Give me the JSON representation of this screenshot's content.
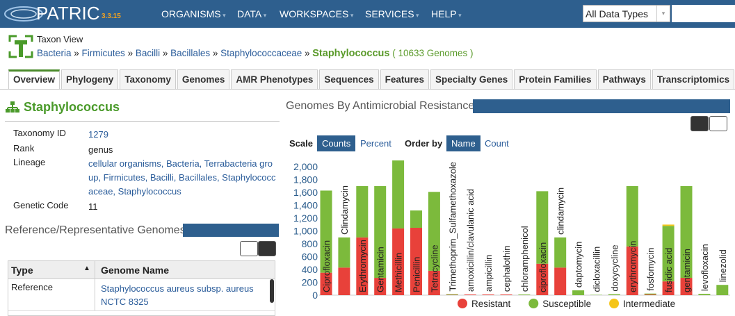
{
  "header": {
    "logo": "PATRIC",
    "version": "3.3.15",
    "menu": [
      "ORGANISMS",
      "DATA",
      "WORKSPACES",
      "SERVICES",
      "HELP"
    ],
    "search_scope": "All Data Types"
  },
  "taxon": {
    "view_label": "Taxon View",
    "breadcrumb": [
      "Bacteria",
      "Firmicutes",
      "Bacilli",
      "Bacillales",
      "Staphylococcaceae"
    ],
    "current": "Staphylococcus",
    "genome_count": "( 10633 Genomes )"
  },
  "tabs": [
    "Overview",
    "Phylogeny",
    "Taxonomy",
    "Genomes",
    "AMR Phenotypes",
    "Sequences",
    "Features",
    "Specialty Genes",
    "Protein Families",
    "Pathways",
    "Transcriptomics"
  ],
  "overview": {
    "title": "Staphylococcus",
    "fields": [
      {
        "label": "Taxonomy ID",
        "value": "1279"
      },
      {
        "label": "Rank",
        "value": "genus"
      },
      {
        "label": "Lineage",
        "value": "cellular organisms, Bacteria, Terrabacteria group, Firmicutes, Bacilli, Bacillales, Staphylococcaceae, Staphylococcus"
      },
      {
        "label": "Genetic Code",
        "value": "11"
      }
    ],
    "ref_title": "Reference/Representative Genomes",
    "columns": [
      "Type",
      "Genome Name"
    ],
    "rows": [
      [
        "Reference",
        "Staphylococcus aureus subsp. aureus NCTC 8325"
      ]
    ]
  },
  "chart_data": {
    "type": "bar",
    "stacked": true,
    "title": "Genomes By Antimicrobial Resistance",
    "controls": {
      "scale_label": "Scale",
      "scale_options": [
        "Counts",
        "Percent"
      ],
      "order_label": "Order by",
      "order_options": [
        "Name",
        "Count"
      ]
    },
    "categories": [
      "Ciprofloxacin",
      "Clindamycin",
      "Erythromycin",
      "Gentamicin",
      "Methicillin",
      "Penicillin",
      "Tetracycline",
      "Trimethoprim_Sulfamethoxazole",
      "amoxicillin/clavulanic acid",
      "ampicillin",
      "cephalothin",
      "chloramphenicol",
      "ciprofloxacin",
      "clindamycin",
      "daptomycin",
      "dicloxacillin",
      "doxycycline",
      "erythromycin",
      "fosfomycin",
      "fusidic acid",
      "gentamicin",
      "levofloxacin",
      "linezolid"
    ],
    "series": [
      {
        "name": "Resistant",
        "color": "#e8413a",
        "values": [
          350,
          430,
          900,
          270,
          1040,
          1050,
          380,
          5,
          10,
          10,
          10,
          0,
          490,
          430,
          0,
          0,
          0,
          760,
          10,
          215,
          270,
          0,
          0
        ]
      },
      {
        "name": "Susceptible",
        "color": "#7cba3c",
        "values": [
          1280,
          470,
          800,
          1430,
          1060,
          270,
          1230,
          10,
          0,
          0,
          0,
          10,
          1130,
          470,
          75,
          5,
          15,
          940,
          15,
          865,
          1430,
          20,
          160
        ]
      },
      {
        "name": "Intermediate",
        "color": "#f5c518",
        "values": [
          0,
          0,
          0,
          0,
          0,
          0,
          0,
          0,
          0,
          0,
          0,
          0,
          0,
          0,
          0,
          0,
          0,
          0,
          0,
          20,
          0,
          0,
          0
        ]
      }
    ],
    "ylim": [
      0,
      2100
    ],
    "yticks": [
      0,
      200,
      400,
      600,
      800,
      {
        "value": 1000,
        "label": "1,000"
      },
      {
        "value": 1200,
        "label": "1,200"
      },
      {
        "value": 1400,
        "label": "1,400"
      },
      {
        "value": 1600,
        "label": "1,600"
      },
      {
        "value": 1800,
        "label": "1,800"
      },
      {
        "value": 2000,
        "label": "2,000"
      }
    ]
  }
}
